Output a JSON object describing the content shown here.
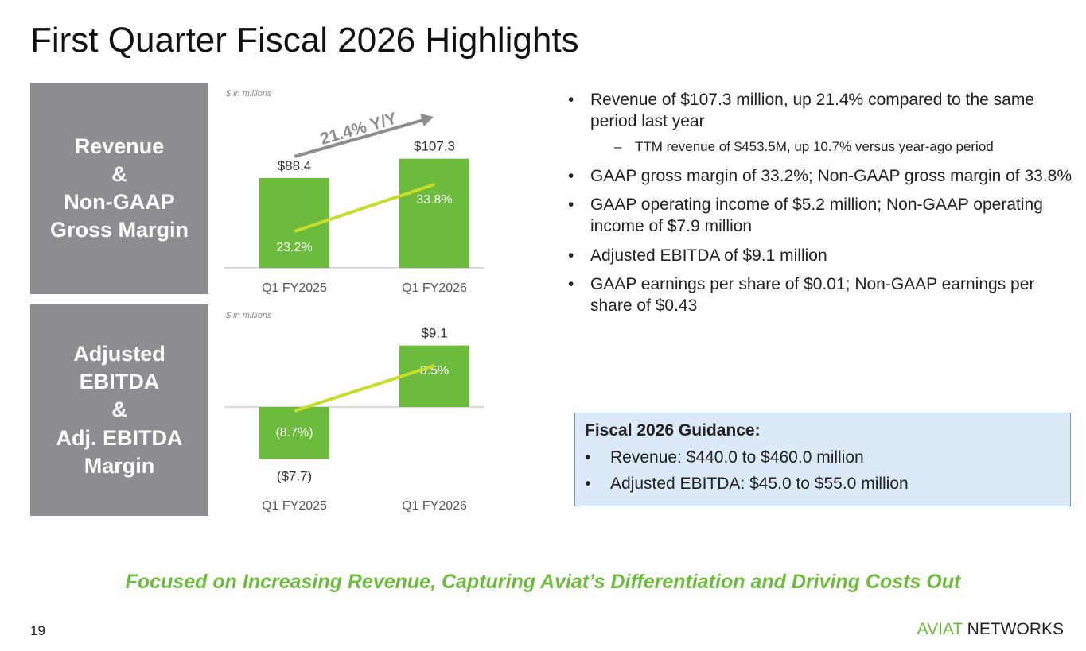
{
  "title": "First Quarter Fiscal 2026 Highlights",
  "panels": [
    "Revenue\n&\nNon-GAAP\nGross Margin",
    "Adjusted\nEBITDA\n&\nAdj. EBITDA\nMargin"
  ],
  "chart_data": [
    {
      "type": "bar",
      "note": "$ in millions",
      "categories": [
        "Q1 FY2025",
        "Q1 FY2026"
      ],
      "values": [
        88.4,
        107.3
      ],
      "value_labels": [
        "$88.4",
        "$107.3"
      ],
      "line_series": {
        "name": "Non-GAAP Gross Margin",
        "values": [
          23.2,
          33.8
        ],
        "labels": [
          "23.2%",
          "33.8%"
        ]
      },
      "annotation": "21.4% Y/Y"
    },
    {
      "type": "bar",
      "note": "$ in millions",
      "categories": [
        "Q1 FY2025",
        "Q1 FY2026"
      ],
      "values": [
        -7.7,
        9.1
      ],
      "value_labels": [
        "($7.7)",
        "$9.1"
      ],
      "line_series": {
        "name": "Adj. EBITDA Margin",
        "values": [
          -8.7,
          8.5
        ],
        "labels": [
          "(8.7%)",
          "8.5%"
        ]
      }
    }
  ],
  "bullets": [
    "Revenue of $107.3 million, up 21.4% compared to the same period last year",
    "TTM revenue of $453.5M, up 10.7% versus year-ago period",
    "GAAP gross margin of 33.2%; Non-GAAP gross margin of 33.8%",
    "GAAP operating income of $5.2 million; Non-GAAP operating income of $7.9 million",
    "Adjusted EBITDA of $9.1 million",
    "GAAP earnings per share of $0.01; Non-GAAP earnings per share of $0.43"
  ],
  "guidance": {
    "heading": "Fiscal 2026 Guidance:",
    "items": [
      "Revenue: $440.0 to $460.0 million",
      "Adjusted EBITDA: $45.0 to $55.0 million"
    ]
  },
  "tagline": "Focused on Increasing Revenue, Capturing Aviat’s Differentiation and Driving Costs Out",
  "page_number": "19",
  "logo": {
    "part1": "AVIAT",
    "part2": " NETWORKS"
  },
  "colors": {
    "bar": "#6cbb3c",
    "line": "#c8dc2c",
    "panel": "#8c8d90"
  }
}
